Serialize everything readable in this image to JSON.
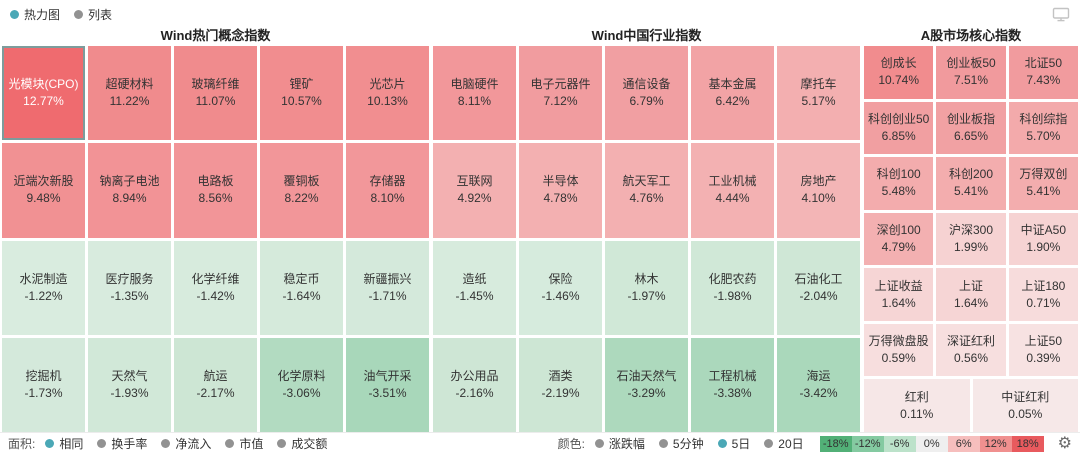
{
  "top_bar": {
    "view_options": [
      {
        "label": "热力图",
        "selected": true
      },
      {
        "label": "列表",
        "selected": false
      }
    ]
  },
  "chart_data": {
    "type": "heatmap",
    "panels": [
      {
        "title": "Wind热门概念指数",
        "grid_cols": 5,
        "rows": [
          [
            {
              "label": "光模块(CPO)",
              "value": 12.77,
              "selected": true
            },
            {
              "label": "超硬材料",
              "value": 11.22
            },
            {
              "label": "玻璃纤维",
              "value": 11.07
            },
            {
              "label": "锂矿",
              "value": 10.57
            },
            {
              "label": "光芯片",
              "value": 10.13
            }
          ],
          [
            {
              "label": "近端次新股",
              "value": 9.48
            },
            {
              "label": "钠离子电池",
              "value": 8.94
            },
            {
              "label": "电路板",
              "value": 8.56
            },
            {
              "label": "覆铜板",
              "value": 8.22
            },
            {
              "label": "存储器",
              "value": 8.1
            }
          ],
          [
            {
              "label": "水泥制造",
              "value": -1.22
            },
            {
              "label": "医疗服务",
              "value": -1.35
            },
            {
              "label": "化学纤维",
              "value": -1.42
            },
            {
              "label": "稳定币",
              "value": -1.64
            },
            {
              "label": "新疆振兴",
              "value": -1.71
            }
          ],
          [
            {
              "label": "挖掘机",
              "value": -1.73
            },
            {
              "label": "天然气",
              "value": -1.93
            },
            {
              "label": "航运",
              "value": -2.17
            },
            {
              "label": "化学原料",
              "value": -3.06
            },
            {
              "label": "油气开采",
              "value": -3.51
            }
          ]
        ]
      },
      {
        "title": "Wind中国行业指数",
        "grid_cols": 5,
        "rows": [
          [
            {
              "label": "电脑硬件",
              "value": 8.11
            },
            {
              "label": "电子元器件",
              "value": 7.12
            },
            {
              "label": "通信设备",
              "value": 6.79
            },
            {
              "label": "基本金属",
              "value": 6.42
            },
            {
              "label": "摩托车",
              "value": 5.17
            }
          ],
          [
            {
              "label": "互联网",
              "value": 4.92
            },
            {
              "label": "半导体",
              "value": 4.78
            },
            {
              "label": "航天军工",
              "value": 4.76
            },
            {
              "label": "工业机械",
              "value": 4.44
            },
            {
              "label": "房地产",
              "value": 4.1
            }
          ],
          [
            {
              "label": "造纸",
              "value": -1.45
            },
            {
              "label": "保险",
              "value": -1.46
            },
            {
              "label": "林木",
              "value": -1.97
            },
            {
              "label": "化肥农药",
              "value": -1.98
            },
            {
              "label": "石油化工",
              "value": -2.04
            }
          ],
          [
            {
              "label": "办公用品",
              "value": -2.16
            },
            {
              "label": "酒类",
              "value": -2.19
            },
            {
              "label": "石油天然气",
              "value": -3.29
            },
            {
              "label": "工程机械",
              "value": -3.38
            },
            {
              "label": "海运",
              "value": -3.42
            }
          ]
        ]
      },
      {
        "title": "A股市场核心指数",
        "grid_cols": 6,
        "rows": [
          [
            {
              "label": "创成长",
              "value": 10.74
            },
            {
              "label": "创业板50",
              "value": 7.51
            },
            {
              "label": "北证50",
              "value": 7.43
            }
          ],
          [
            {
              "label": "科创创业50",
              "value": 6.85
            },
            {
              "label": "创业板指",
              "value": 6.65
            },
            {
              "label": "科创综指",
              "value": 5.7
            }
          ],
          [
            {
              "label": "科创100",
              "value": 5.48
            },
            {
              "label": "科创200",
              "value": 5.41
            },
            {
              "label": "万得双创",
              "value": 5.41
            }
          ],
          [
            {
              "label": "深创100",
              "value": 4.79
            },
            {
              "label": "沪深300",
              "value": 1.99
            },
            {
              "label": "中证A50",
              "value": 1.9
            }
          ],
          [
            {
              "label": "上证收益",
              "value": 1.64
            },
            {
              "label": "上证",
              "value": 1.64
            },
            {
              "label": "上证180",
              "value": 0.71
            }
          ],
          [
            {
              "label": "万得微盘股",
              "value": 0.59
            },
            {
              "label": "深证红利",
              "value": 0.56
            },
            {
              "label": "上证50",
              "value": 0.39
            }
          ],
          [
            {
              "label": "红利",
              "value": 0.11
            },
            {
              "label": "中证红利",
              "value": 0.05
            }
          ]
        ]
      }
    ],
    "color_scale": {
      "stops": [
        [
          -18,
          "#3fa169"
        ],
        [
          -6,
          "#8cc7a3"
        ],
        [
          -3.5,
          "#a8d7ba"
        ],
        [
          -3.0,
          "#b3dcc2"
        ],
        [
          -2.2,
          "#cde6d4"
        ],
        [
          -1.8,
          "#d3e9da"
        ],
        [
          -1.2,
          "#d9ecdf"
        ],
        [
          -0.3,
          "#e7f0ea"
        ],
        [
          0.05,
          "#f6e8e8"
        ],
        [
          0.7,
          "#f7dcdc"
        ],
        [
          2,
          "#f6d2d2"
        ],
        [
          4.3,
          "#f3b2b3"
        ],
        [
          5.3,
          "#f3aeaf"
        ],
        [
          7,
          "#f19da0"
        ],
        [
          8.5,
          "#f29598"
        ],
        [
          10.2,
          "#f18e90"
        ],
        [
          11.5,
          "#f08a8c"
        ],
        [
          12.9,
          "#ef686c"
        ],
        [
          18,
          "#e4474c"
        ]
      ],
      "legend": [
        {
          "label": "-18%",
          "color": "#52b077"
        },
        {
          "label": "-12%",
          "color": "#84caa1"
        },
        {
          "label": "-6%",
          "color": "#bce2ca"
        },
        {
          "label": "0%",
          "color": "#efefef"
        },
        {
          "label": "6%",
          "color": "#f6bebd"
        },
        {
          "label": "12%",
          "color": "#f0908f"
        },
        {
          "label": "18%",
          "color": "#e85a5e"
        }
      ]
    }
  },
  "bottom_bar": {
    "area_label": "面积:",
    "area_options": [
      {
        "label": "相同",
        "selected": true
      },
      {
        "label": "换手率",
        "selected": false
      },
      {
        "label": "净流入",
        "selected": false
      },
      {
        "label": "市值",
        "selected": false
      },
      {
        "label": "成交额",
        "selected": false
      }
    ],
    "color_label": "颜色:",
    "color_options": [
      {
        "label": "涨跌幅",
        "selected": false
      },
      {
        "label": "5分钟",
        "selected": false
      },
      {
        "label": "5日",
        "selected": true
      },
      {
        "label": "20日",
        "selected": false
      }
    ]
  },
  "colors": {
    "radio_selected": "#4ba8b6",
    "radio_unselected": "#929292",
    "selected_cell_border": "#7d9c9c"
  }
}
